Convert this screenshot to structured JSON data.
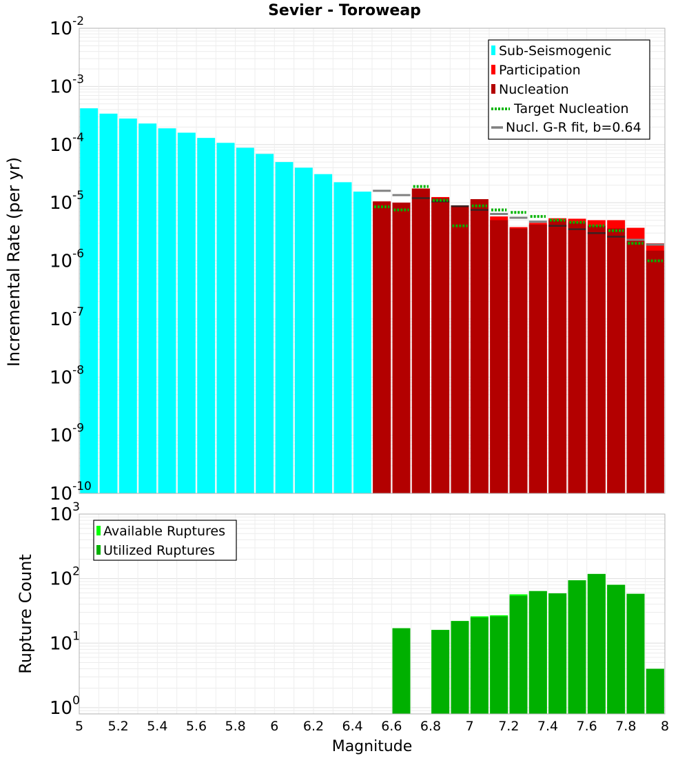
{
  "chart_data": [
    {
      "type": "bar",
      "title": "Sevier - Toroweap",
      "xlabel": "Magnitude",
      "ylabel": "Incremental Rate (per yr)",
      "yscale": "log",
      "ylim": [
        1e-10,
        0.01
      ],
      "xlim": [
        5,
        8
      ],
      "bin_width": 0.1,
      "grid": true,
      "legend_position": "top-right",
      "y_ticks": [
        {
          "base": "10",
          "exp": "-10",
          "value": 1e-10
        },
        {
          "base": "10",
          "exp": "-9",
          "value": 1e-09
        },
        {
          "base": "10",
          "exp": "-8",
          "value": 1e-08
        },
        {
          "base": "10",
          "exp": "-7",
          "value": 1e-07
        },
        {
          "base": "10",
          "exp": "-6",
          "value": 1e-06
        },
        {
          "base": "10",
          "exp": "-5",
          "value": 1e-05
        },
        {
          "base": "10",
          "exp": "-4",
          "value": 0.0001
        },
        {
          "base": "10",
          "exp": "-3",
          "value": 0.001
        },
        {
          "base": "10",
          "exp": "-2",
          "value": 0.01
        }
      ],
      "series": [
        {
          "name": "Sub-Seismogenic",
          "color": "#00ffff",
          "style": "bar",
          "x": [
            5.05,
            5.15,
            5.25,
            5.35,
            5.45,
            5.55,
            5.65,
            5.75,
            5.85,
            5.95,
            6.05,
            6.15,
            6.25,
            6.35,
            6.45
          ],
          "values": [
            0.00042,
            0.00034,
            0.00028,
            0.00023,
            0.00019,
            0.00016,
            0.00013,
            0.000107,
            8.8e-05,
            6.9e-05,
            5e-05,
            4e-05,
            3.1e-05,
            2.25e-05,
            1.55e-05
          ]
        },
        {
          "name": "Participation",
          "color": "#ff0000",
          "style": "bar",
          "x": [
            6.55,
            6.65,
            6.75,
            6.85,
            6.95,
            7.05,
            7.15,
            7.25,
            7.35,
            7.45,
            7.55,
            7.65,
            7.75,
            7.85,
            7.95
          ],
          "values": [
            1.05e-05,
            1e-05,
            1.75e-05,
            1.25e-05,
            9e-06,
            1.15e-05,
            5.8e-06,
            3.8e-06,
            4.5e-06,
            5.4e-06,
            5.3e-06,
            5e-06,
            5e-06,
            3.7e-06,
            2e-06
          ]
        },
        {
          "name": "Nucleation",
          "color": "#b30000",
          "style": "bar",
          "x": [
            6.55,
            6.65,
            6.75,
            6.85,
            6.95,
            7.05,
            7.15,
            7.25,
            7.35,
            7.45,
            7.55,
            7.65,
            7.75,
            7.85,
            7.95
          ],
          "values": [
            1.05e-05,
            1e-05,
            1.75e-05,
            1.2e-05,
            8.8e-06,
            1.15e-05,
            5e-06,
            3.6e-06,
            4.2e-06,
            5e-06,
            4.6e-06,
            4e-06,
            3.6e-06,
            2.2e-06,
            1.5e-06
          ]
        },
        {
          "name": "Target Nucleation",
          "color": "#00b400",
          "style": "dotted",
          "x": [
            6.55,
            6.65,
            6.75,
            6.85,
            6.95,
            7.05,
            7.15,
            7.25,
            7.35,
            7.45,
            7.55,
            7.65,
            7.75,
            7.85,
            7.95
          ],
          "values": [
            8.5e-06,
            7.5e-06,
            1.9e-05,
            1.1e-05,
            4e-06,
            8.8e-06,
            7.5e-06,
            6.8e-06,
            5.8e-06,
            5e-06,
            4.6e-06,
            4e-06,
            3.3e-06,
            2e-06,
            1e-06
          ]
        },
        {
          "name": "Nucl. G-R fit, b=0.64",
          "color": "#808080",
          "style": "step",
          "x": [
            6.55,
            6.65,
            6.75,
            6.85,
            6.95,
            7.05,
            7.15,
            7.25,
            7.35,
            7.45,
            7.55,
            7.65,
            7.75,
            7.85,
            7.95
          ],
          "values": [
            1.6e-05,
            1.35e-05,
            1.2e-05,
            1.05e-05,
            8.7e-06,
            7.5e-06,
            6.4e-06,
            5.5e-06,
            4.7e-06,
            4e-06,
            3.5e-06,
            3e-06,
            2.6e-06,
            2.3e-06,
            1.9e-06
          ]
        }
      ]
    },
    {
      "type": "bar",
      "title": "",
      "xlabel": "Magnitude",
      "ylabel": "Rupture Count",
      "yscale": "log",
      "ylim": [
        0.8,
        1000
      ],
      "xlim": [
        5,
        8
      ],
      "bin_width": 0.1,
      "grid": true,
      "legend_position": "top-left",
      "x_ticks": [
        "5",
        "5.2",
        "5.4",
        "5.6",
        "5.8",
        "6",
        "6.2",
        "6.4",
        "6.6",
        "6.8",
        "7",
        "7.2",
        "7.4",
        "7.6",
        "7.8",
        "8"
      ],
      "x_tick_values": [
        5,
        5.2,
        5.4,
        5.6,
        5.8,
        6,
        6.2,
        6.4,
        6.6,
        6.8,
        7,
        7.2,
        7.4,
        7.6,
        7.8,
        8
      ],
      "y_ticks": [
        {
          "base": "10",
          "exp": "0",
          "value": 1
        },
        {
          "base": "10",
          "exp": "1",
          "value": 10
        },
        {
          "base": "10",
          "exp": "2",
          "value": 100
        },
        {
          "base": "10",
          "exp": "3",
          "value": 1000
        }
      ],
      "series": [
        {
          "name": "Available Ruptures",
          "color": "#00ff00",
          "style": "bar",
          "x": [
            6.65,
            6.85,
            6.95,
            7.05,
            7.15,
            7.25,
            7.35,
            7.45,
            7.55,
            7.65,
            7.75,
            7.85,
            7.95
          ],
          "values": [
            17,
            16,
            22,
            26,
            27,
            57,
            64,
            59,
            94,
            118,
            80,
            58,
            4
          ]
        },
        {
          "name": "Utilized Ruptures",
          "color": "#00b000",
          "style": "bar",
          "x": [
            6.65,
            6.85,
            6.95,
            7.05,
            7.15,
            7.25,
            7.35,
            7.45,
            7.55,
            7.65,
            7.75,
            7.85,
            7.95
          ],
          "values": [
            17,
            16,
            22,
            25,
            26,
            54,
            64,
            59,
            94,
            118,
            80,
            58,
            4
          ]
        }
      ]
    }
  ]
}
